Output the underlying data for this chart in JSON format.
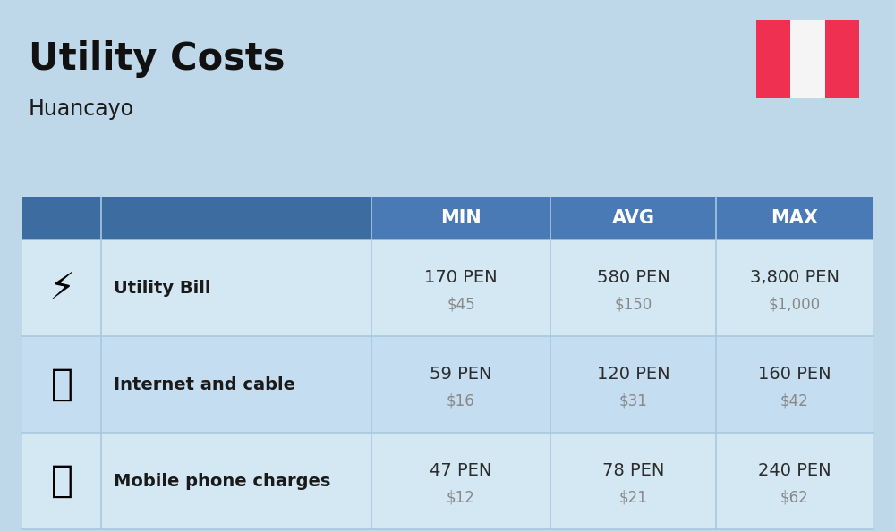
{
  "title": "Utility Costs",
  "subtitle": "Huancayo",
  "background_color": "#bed8ea",
  "table_header_bg": "#4a7ab5",
  "table_header_text": "#ffffff",
  "header_labels": [
    "MIN",
    "AVG",
    "MAX"
  ],
  "row_bg_odd": "#d4e8f4",
  "row_bg_even": "#c5ddf0",
  "divider_color": "#a8c8e0",
  "rows": [
    {
      "label": "Utility Bill",
      "min_pen": "170 PEN",
      "min_usd": "$45",
      "avg_pen": "580 PEN",
      "avg_usd": "$150",
      "max_pen": "3,800 PEN",
      "max_usd": "$1,000"
    },
    {
      "label": "Internet and cable",
      "min_pen": "59 PEN",
      "min_usd": "$16",
      "avg_pen": "120 PEN",
      "avg_usd": "$31",
      "max_pen": "160 PEN",
      "max_usd": "$42"
    },
    {
      "label": "Mobile phone charges",
      "min_pen": "47 PEN",
      "min_usd": "$12",
      "avg_pen": "78 PEN",
      "avg_usd": "$21",
      "max_pen": "240 PEN",
      "max_usd": "$62"
    }
  ],
  "pen_color": "#2c2c2c",
  "usd_color": "#888888",
  "label_color": "#1a1a1a",
  "flag_red": "#f03050",
  "flag_white": "#f5f5f5",
  "title_color": "#111111",
  "subtitle_color": "#1a1a1a"
}
